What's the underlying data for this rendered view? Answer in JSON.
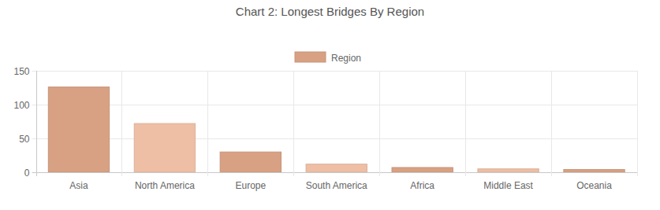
{
  "chart_data": {
    "type": "bar",
    "title": "Chart 2: Longest Bridges By Region",
    "categories": [
      "Asia",
      "North America",
      "Europe",
      "South America",
      "Africa",
      "Middle East",
      "Oceania"
    ],
    "series": [
      {
        "name": "Region",
        "values": [
          126,
          72,
          30,
          12,
          7,
          5,
          4
        ]
      }
    ],
    "colors": [
      "#d8a183",
      "#eebfa5",
      "#d8a183",
      "#eebfa5",
      "#d8a183",
      "#eebfa5",
      "#d8a183"
    ],
    "ylim": [
      0,
      150
    ],
    "yticks": [
      0,
      50,
      100,
      150
    ],
    "grid": true,
    "legend": "top"
  }
}
